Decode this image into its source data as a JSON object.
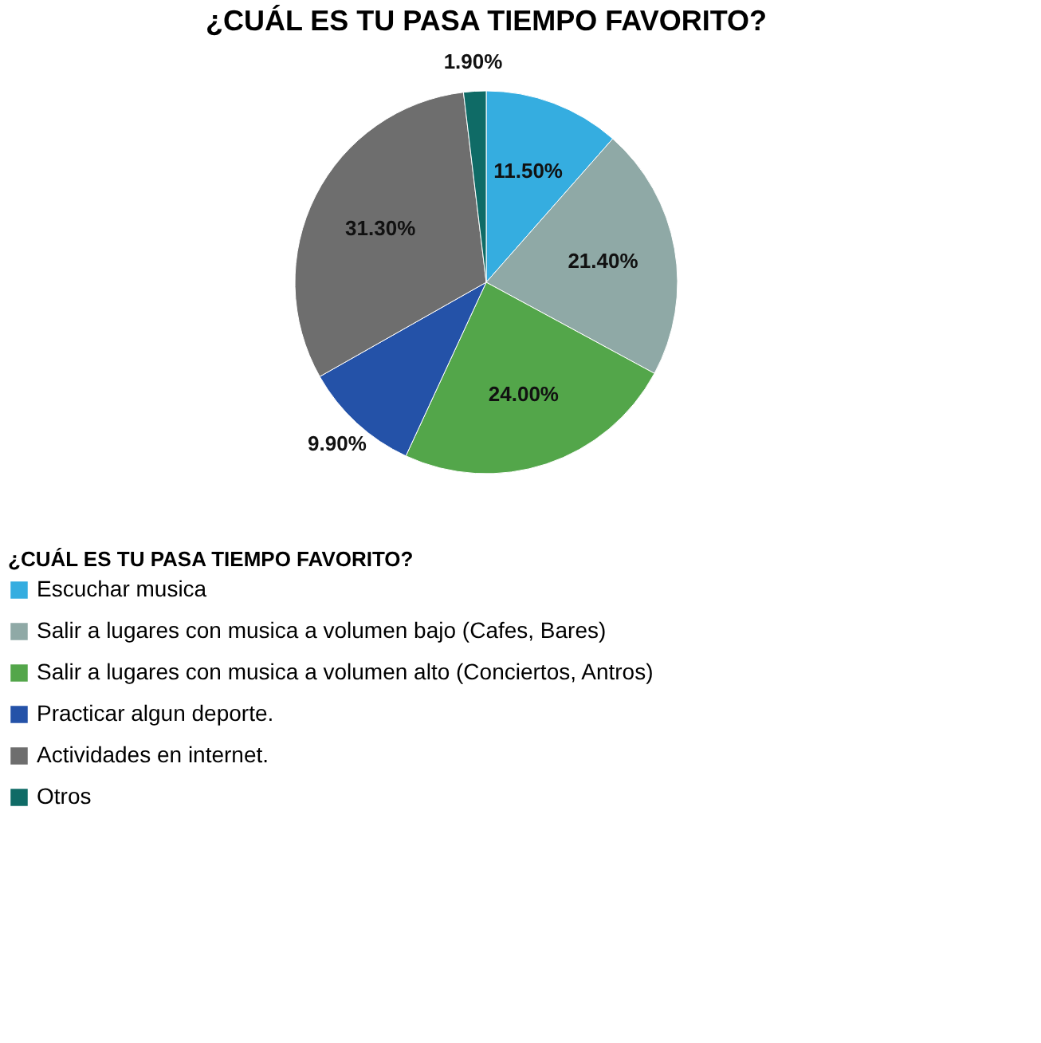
{
  "chart_data": {
    "type": "pie",
    "title": "¿CUÁL ES TU PASA TIEMPO FAVORITO?",
    "legend_title": "¿CUÁL ES TU PASA TIEMPO FAVORITO?",
    "categories": [
      "Escuchar musica",
      "Salir a lugares con musica a volumen bajo (Cafes, Bares)",
      "Salir a lugares con musica a volumen alto (Conciertos, Antros)",
      "Practicar algun deporte.",
      "Actividades en internet.",
      "Otros"
    ],
    "values": [
      11.5,
      21.4,
      24.0,
      9.9,
      31.3,
      1.9
    ],
    "value_labels": [
      "11.50%",
      "21.40%",
      "24.00%",
      "9.90%",
      "31.30%",
      "1.90%"
    ],
    "colors": [
      "#35ade0",
      "#8fa9a6",
      "#53a64a",
      "#2452a8",
      "#6e6e6e",
      "#0f6b66"
    ],
    "legend": "bottom left"
  }
}
